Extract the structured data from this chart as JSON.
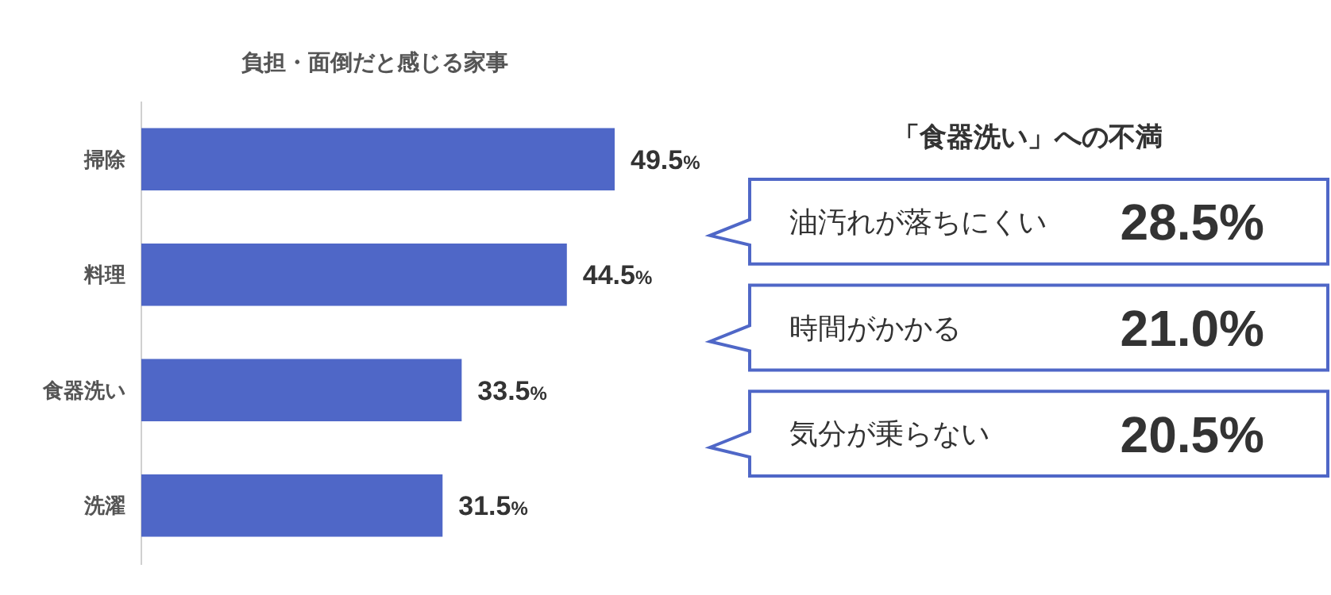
{
  "chart_data": [
    {
      "type": "bar",
      "orientation": "horizontal",
      "title": "負担・面倒だと感じる家事",
      "categories": [
        "掃除",
        "料理",
        "食器洗い",
        "洗濯"
      ],
      "values": [
        49.5,
        44.5,
        33.5,
        31.5
      ],
      "value_labels": [
        "49.5%",
        "44.5%",
        "33.5%",
        "31.5%"
      ],
      "color": "#4f67c7"
    },
    {
      "type": "other",
      "title": "「食器洗い」への不満",
      "categories": [
        "油汚れが落ちにくい",
        "時間がかかる",
        "気分が乗らない"
      ],
      "values": [
        28.5,
        21.0,
        20.5
      ],
      "value_labels": [
        "28.5%",
        "21.0%",
        "20.5%"
      ],
      "color": "#4f67c7"
    }
  ]
}
